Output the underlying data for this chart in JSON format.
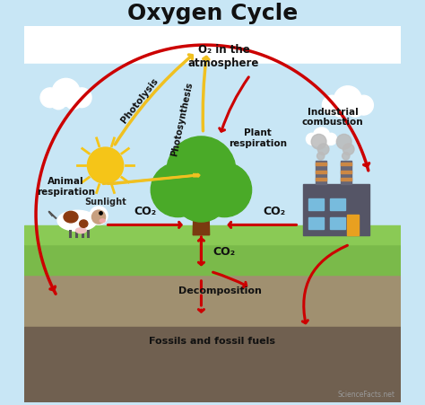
{
  "title": "Oxygen Cycle",
  "sky_color": "#c8e6f5",
  "ground_color": "#7aba4a",
  "underground_color": "#a09070",
  "underground_dark": "#706050",
  "arrow_red": "#cc0000",
  "arrow_yellow": "#f0c020",
  "sun_color": "#f5c518",
  "tree_trunk": "#7a3a10",
  "tree_canopy": "#4aaa28",
  "factory_color": "#555566",
  "watermark": "ScienceFacts.net",
  "labels": {
    "o2_atm": "O₂ in the\natmosphere",
    "photolysis": "Photolysis",
    "photosynthesis": "Photosynthesis",
    "sunlight": "Sunlight",
    "plant_resp": "Plant\nrespiration",
    "animal_resp": "Animal\nrespiration",
    "industrial": "Industrial\ncombustion",
    "co2_left": "CO₂",
    "co2_right": "CO₂",
    "co2_below": "CO₂",
    "decomposition": "Decomposition",
    "fossils": "Fossils and fossil fuels"
  }
}
